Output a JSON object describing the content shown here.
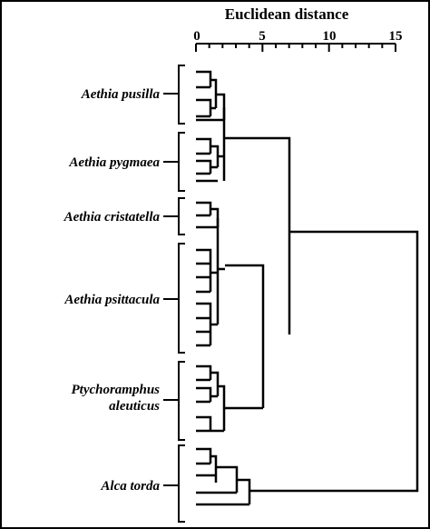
{
  "title": "Euclidean distance",
  "axis": {
    "min": 0,
    "max": 15,
    "tick_labels": [
      "0",
      "5",
      "10",
      "15"
    ]
  },
  "species": [
    {
      "lines": [
        "Aethia pusilla"
      ]
    },
    {
      "lines": [
        "Aethia pygmaea"
      ]
    },
    {
      "lines": [
        "Aethia cristatella"
      ]
    },
    {
      "lines": [
        "Aethia psittacula"
      ]
    },
    {
      "lines": [
        "Ptychoramphus",
        "aleuticus"
      ]
    },
    {
      "lines": [
        "Alca torda"
      ]
    }
  ],
  "colors": {
    "line": "#000000",
    "background": "#ffffff"
  }
}
